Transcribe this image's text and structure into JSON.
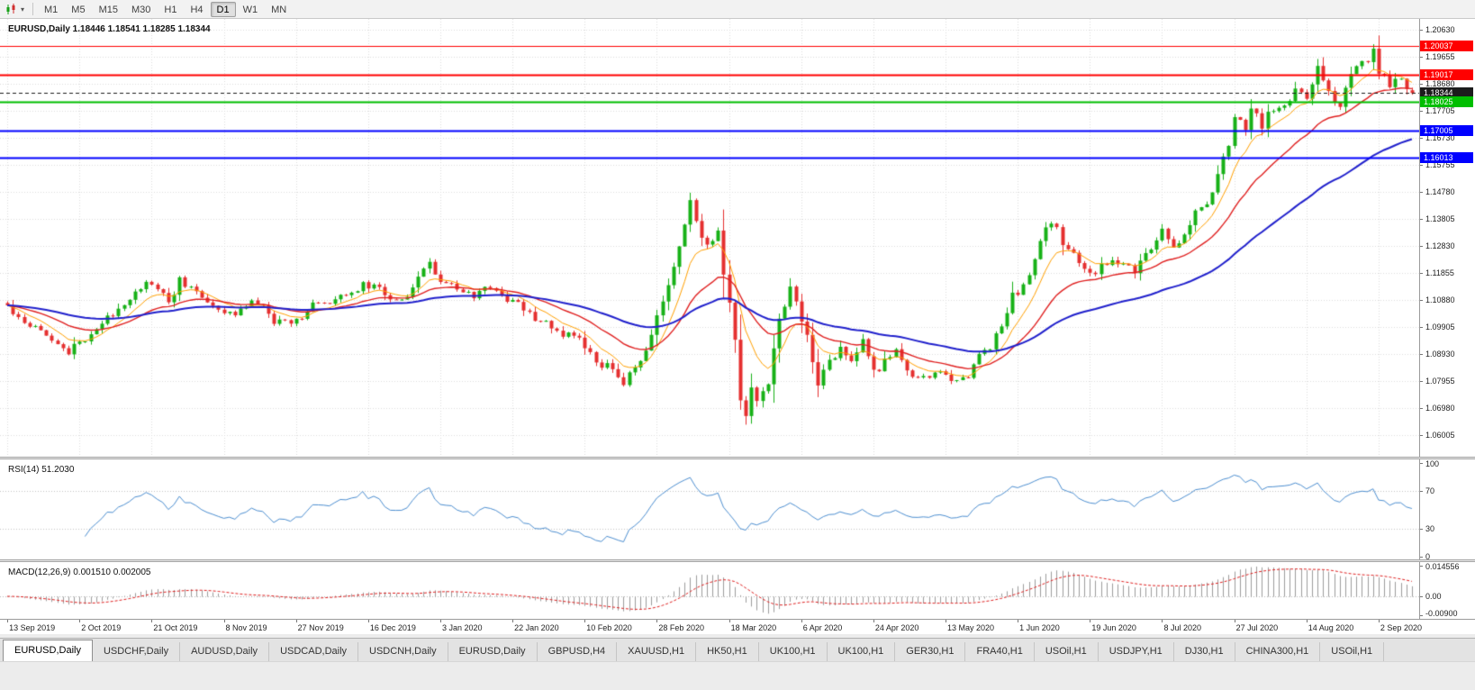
{
  "toolbar": {
    "caret": "▾",
    "timeframes": [
      "M1",
      "M5",
      "M15",
      "M30",
      "H1",
      "H4",
      "D1",
      "W1",
      "MN"
    ],
    "active_timeframe": "D1"
  },
  "chart": {
    "title": "EURUSD,Daily 1.18446 1.18541 1.18285 1.18344",
    "symbol": "EURUSD",
    "period": "Daily",
    "colors": {
      "bull": "#17B117",
      "bear": "#E53030",
      "grid": "#DCDCDC",
      "background": "#FFFFFF",
      "current_price_box": "#1C1C1C"
    }
  },
  "chart_data": {
    "type": "candlestick",
    "bar_count": 254,
    "label_every_n_bars": 13,
    "x_labels": [
      "13 Sep 2019",
      "2 Oct 2019",
      "21 Oct 2019",
      "8 Nov 2019",
      "27 Nov 2019",
      "16 Dec 2019",
      "3 Jan 2020",
      "22 Jan 2020",
      "10 Feb 2020",
      "28 Feb 2020",
      "18 Mar 2020",
      "6 Apr 2020",
      "24 Apr 2020",
      "13 May 2020",
      "1 Jun 2020",
      "19 Jun 2020",
      "8 Jul 2020",
      "27 Jul 2020",
      "14 Aug 2020",
      "2 Sep 2020"
    ],
    "y_ticks": [
      "1.20630",
      "1.19655",
      "1.18680",
      "1.17705",
      "1.16730",
      "1.15755",
      "1.14780",
      "1.13805",
      "1.12830",
      "1.11855",
      "1.10880",
      "1.09905",
      "1.08930",
      "1.07955",
      "1.06980",
      "1.06005"
    ],
    "price_anchors": [
      [
        0,
        1.1065
      ],
      [
        3,
        1.101
      ],
      [
        6,
        1.099
      ],
      [
        9,
        1.093
      ],
      [
        11,
        1.0895
      ],
      [
        13,
        1.0935
      ],
      [
        16,
        1.0985
      ],
      [
        19,
        1.1035
      ],
      [
        23,
        1.1125
      ],
      [
        26,
        1.115
      ],
      [
        29,
        1.1075
      ],
      [
        31,
        1.116
      ],
      [
        34,
        1.1115
      ],
      [
        37,
        1.107
      ],
      [
        39,
        1.103
      ],
      [
        42,
        1.1055
      ],
      [
        45,
        1.108
      ],
      [
        48,
        1.101
      ],
      [
        52,
        1.1015
      ],
      [
        55,
        1.1075
      ],
      [
        58,
        1.1065
      ],
      [
        61,
        1.1115
      ],
      [
        65,
        1.1145
      ],
      [
        68,
        1.111
      ],
      [
        71,
        1.1085
      ],
      [
        74,
        1.1175
      ],
      [
        76,
        1.1215
      ],
      [
        78,
        1.1165
      ],
      [
        81,
        1.112
      ],
      [
        84,
        1.1095
      ],
      [
        86,
        1.1145
      ],
      [
        89,
        1.1095
      ],
      [
        91,
        1.1085
      ],
      [
        94,
        1.1035
      ],
      [
        97,
        1.1
      ],
      [
        100,
        1.0965
      ],
      [
        103,
        1.0945
      ],
      [
        106,
        1.0865
      ],
      [
        109,
        1.0835
      ],
      [
        111,
        1.079
      ],
      [
        113,
        1.0845
      ],
      [
        115,
        1.0895
      ],
      [
        117,
        1.1025
      ],
      [
        119,
        1.1135
      ],
      [
        121,
        1.1285
      ],
      [
        123,
        1.144
      ],
      [
        124,
        1.136
      ],
      [
        126,
        1.1285
      ],
      [
        128,
        1.1335
      ],
      [
        129,
        1.1185
      ],
      [
        130,
        1.1065
      ],
      [
        131,
        1.0955
      ],
      [
        132,
        1.072
      ],
      [
        133,
        1.066
      ],
      [
        134,
        1.0775
      ],
      [
        135,
        1.0725
      ],
      [
        137,
        1.0795
      ],
      [
        139,
        1.1015
      ],
      [
        141,
        1.1135
      ],
      [
        143,
        1.1015
      ],
      [
        144,
        1.096
      ],
      [
        146,
        1.0795
      ],
      [
        148,
        1.0865
      ],
      [
        150,
        1.0915
      ],
      [
        152,
        1.0875
      ],
      [
        154,
        1.0935
      ],
      [
        156,
        1.0825
      ],
      [
        158,
        1.0865
      ],
      [
        160,
        1.0895
      ],
      [
        162,
        1.084
      ],
      [
        164,
        1.0795
      ],
      [
        166,
        1.082
      ],
      [
        169,
        1.0815
      ],
      [
        171,
        1.0795
      ],
      [
        173,
        1.0815
      ],
      [
        175,
        1.0895
      ],
      [
        177,
        1.0925
      ],
      [
        179,
        1.0985
      ],
      [
        181,
        1.1105
      ],
      [
        183,
        1.1135
      ],
      [
        185,
        1.1235
      ],
      [
        187,
        1.1335
      ],
      [
        188,
        1.1375
      ],
      [
        190,
        1.1295
      ],
      [
        192,
        1.1255
      ],
      [
        194,
        1.1195
      ],
      [
        195,
        1.1175
      ],
      [
        197,
        1.1205
      ],
      [
        199,
        1.1245
      ],
      [
        201,
        1.1215
      ],
      [
        203,
        1.1185
      ],
      [
        205,
        1.1255
      ],
      [
        207,
        1.1305
      ],
      [
        208,
        1.1335
      ],
      [
        210,
        1.1285
      ],
      [
        212,
        1.1325
      ],
      [
        214,
        1.1405
      ],
      [
        216,
        1.1435
      ],
      [
        218,
        1.1545
      ],
      [
        220,
        1.1655
      ],
      [
        221,
        1.1745
      ],
      [
        223,
        1.1715
      ],
      [
        224,
        1.1775
      ],
      [
        226,
        1.172
      ],
      [
        228,
        1.1785
      ],
      [
        230,
        1.1775
      ],
      [
        232,
        1.1855
      ],
      [
        234,
        1.1825
      ],
      [
        236,
        1.1925
      ],
      [
        238,
        1.1845
      ],
      [
        240,
        1.1785
      ],
      [
        242,
        1.1905
      ],
      [
        244,
        1.1935
      ],
      [
        246,
        1.1985
      ],
      [
        247,
        1.1915
      ],
      [
        249,
        1.1855
      ],
      [
        251,
        1.1885
      ],
      [
        253,
        1.18344
      ]
    ],
    "overrides": {
      "high": [
        [
          246,
          1.2005
        ]
      ],
      "low": [
        [
          133,
          1.0638
        ]
      ],
      "last_bar": {
        "o": 1.18446,
        "h": 1.18541,
        "l": 1.18285,
        "c": 1.18344
      }
    },
    "levels": [
      {
        "price": 1.20037,
        "label": "1.20037",
        "color": "#FF0000",
        "style": "solid",
        "width": 1
      },
      {
        "price": 1.19017,
        "label": "1.19017",
        "color": "#FF0000",
        "style": "solid",
        "width": 2
      },
      {
        "price": 1.18344,
        "label": "1.18344",
        "color": "#1C1C1C",
        "style": "dash",
        "width": 1,
        "current": true
      },
      {
        "price": 1.18025,
        "label": "1.18025",
        "color": "#00BE00",
        "style": "solid",
        "width": 2
      },
      {
        "price": 1.17005,
        "label": "1.17005",
        "color": "#0000FF",
        "style": "solid",
        "width": 2
      },
      {
        "price": 1.16013,
        "label": "1.16013",
        "color": "#0000FF",
        "style": "solid",
        "width": 2
      }
    ],
    "moving_averages": [
      {
        "name": "ma-fast",
        "type": "ema",
        "period": 8,
        "color": "#FFA000",
        "width": 1
      },
      {
        "name": "ma-medium",
        "type": "ema",
        "period": 21,
        "color": "#E02020",
        "width": 1.4
      },
      {
        "name": "ma-slow",
        "type": "ema",
        "period": 55,
        "color": "#2020CC",
        "width": 2
      }
    ],
    "rsi": {
      "title": "RSI(14) 51.2030",
      "period": 14,
      "value": "51.2030",
      "color": "#4D8FD1",
      "levels": [
        70,
        30
      ],
      "ticks": [
        {
          "v": 100,
          "label": "100"
        },
        {
          "v": 70,
          "label": "70"
        },
        {
          "v": 30,
          "label": "30"
        },
        {
          "v": 0,
          "label": "0"
        }
      ]
    },
    "macd": {
      "title": "MACD(12,26,9) 0.001510 0.002005",
      "fast": 12,
      "slow": 26,
      "signal": 9,
      "value": "0.001510",
      "signal_value": "0.002005",
      "hist_color": "#9D9D9D",
      "signal_color": "#E02020",
      "scale_max": 0.014556,
      "scale_min": -0.009,
      "ticks": [
        {
          "v": 0.014556,
          "label": "0.014556"
        },
        {
          "v": 0,
          "label": "0.00"
        },
        {
          "v": -0.009,
          "label": "-0.00900"
        }
      ]
    }
  },
  "tabs": [
    "EURUSD,Daily",
    "USDCHF,Daily",
    "AUDUSD,Daily",
    "USDCAD,Daily",
    "USDCNH,Daily",
    "EURUSD,Daily",
    "GBPUSD,H4",
    "XAUUSD,H1",
    "HK50,H1",
    "UK100,H1",
    "UK100,H1",
    "GER30,H1",
    "FRA40,H1",
    "USOil,H1",
    "USDJPY,H1",
    "DJ30,H1",
    "CHINA300,H1",
    "USOil,H1"
  ],
  "active_tab_index": 0
}
